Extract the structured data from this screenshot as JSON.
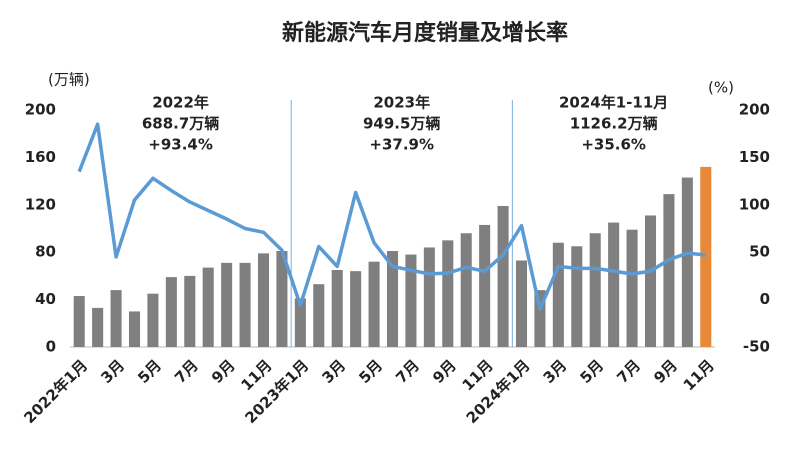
{
  "chart_data": {
    "type": "bar_line",
    "title": "新能源汽车月度销量及增长率",
    "y_label": "(万辆)",
    "y2_label": "(%)",
    "categories": [
      "2022年1月",
      null,
      "3月",
      null,
      "5月",
      null,
      "7月",
      null,
      "9月",
      null,
      "11月",
      null,
      "2023年1月",
      null,
      "3月",
      null,
      "5月",
      null,
      "7月",
      null,
      "9月",
      null,
      "11月",
      null,
      "2024年1月",
      null,
      "3月",
      null,
      "5月",
      null,
      "7月",
      null,
      "9月",
      null,
      "11月"
    ],
    "series": [
      {
        "type": "bar",
        "color": "#7f7f7f",
        "colors": [
          "#7f7f7f",
          "#7f7f7f",
          "#7f7f7f",
          "#7f7f7f",
          "#7f7f7f",
          "#7f7f7f",
          "#7f7f7f",
          "#7f7f7f",
          "#7f7f7f",
          "#7f7f7f",
          "#7f7f7f",
          "#7f7f7f",
          "#7f7f7f",
          "#7f7f7f",
          "#7f7f7f",
          "#7f7f7f",
          "#7f7f7f",
          "#7f7f7f",
          "#7f7f7f",
          "#7f7f7f",
          "#7f7f7f",
          "#7f7f7f",
          "#7f7f7f",
          "#7f7f7f",
          "#7f7f7f",
          "#7f7f7f",
          "#7f7f7f",
          "#7f7f7f",
          "#7f7f7f",
          "#7f7f7f",
          "#7f7f7f",
          "#7f7f7f",
          "#7f7f7f",
          "#7f7f7f",
          "#e8893a"
        ],
        "values": [
          43,
          33,
          48,
          30,
          45,
          59,
          60,
          67,
          71,
          71,
          79,
          81,
          41,
          53,
          65,
          64,
          72,
          81,
          78,
          84,
          90,
          96,
          103,
          119,
          73,
          48,
          88,
          85,
          96,
          105,
          99,
          111,
          129,
          143,
          152
        ]
      },
      {
        "type": "line",
        "axis": "y2",
        "color": "#5b9bd5",
        "values": [
          135,
          185,
          45,
          105,
          128,
          115,
          103,
          94,
          85,
          75,
          71,
          52,
          -6,
          56,
          35,
          113,
          60,
          35,
          31,
          27,
          28,
          34,
          30,
          47,
          78,
          -10,
          35,
          33,
          33,
          30,
          27,
          30,
          42,
          49,
          47
        ]
      }
    ],
    "annotations": [
      [
        "2022年",
        "688.7万辆",
        "+93.4%"
      ],
      [
        "2023年",
        "949.5万辆",
        "+37.9%"
      ],
      [
        "2024年1-11月",
        "1126.2万辆",
        "+35.6%"
      ]
    ],
    "ylim": [
      0,
      200
    ],
    "yticks": [
      0,
      40,
      80,
      120,
      160,
      200
    ],
    "y2lim": [
      -50,
      200
    ],
    "y2ticks": [
      -50,
      0,
      50,
      100,
      150,
      200
    ]
  }
}
